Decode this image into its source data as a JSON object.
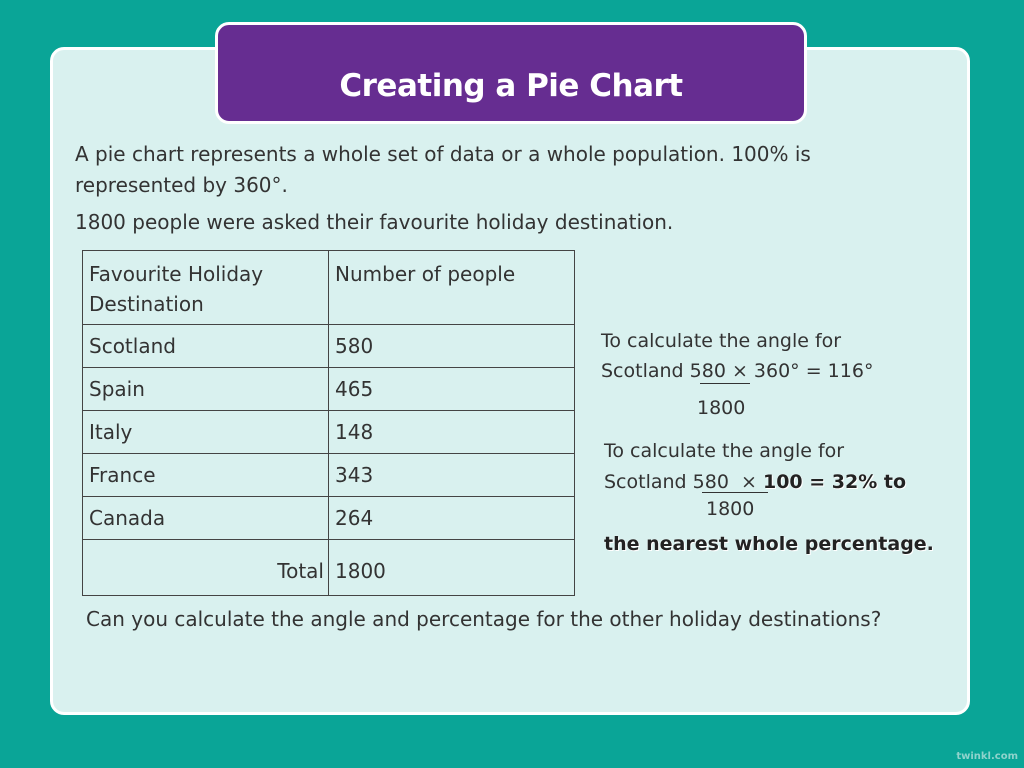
{
  "title": "Creating a Pie Chart",
  "intro_line1": "A pie chart represents a whole set of data or a whole population. 100% is",
  "intro_line2": "represented by 360°.",
  "survey": "1800 people were asked their favourite holiday destination.",
  "table": {
    "header_destination_1": "Favourite Holiday",
    "header_destination_2": "Destination",
    "header_people": "Number of people",
    "rows": [
      {
        "destination": "Scotland",
        "people": "580"
      },
      {
        "destination": "Spain",
        "people": "465"
      },
      {
        "destination": "Italy",
        "people": "148"
      },
      {
        "destination": "France",
        "people": "343"
      },
      {
        "destination": "Canada",
        "people": "264"
      }
    ],
    "total_label": "Total",
    "total_value": "1800"
  },
  "angle_calc": {
    "line1": "To calculate the angle for",
    "prefix": "Scotland ",
    "numerator": "580",
    "rest": " × 360° = 116°",
    "denominator": "1800"
  },
  "percent_calc": {
    "line1": "To calculate the angle for",
    "prefix": "Scotland ",
    "numerator": "580",
    "times": "  × ",
    "rest": "100 = 32% to",
    "denominator": "1800",
    "line3": "the nearest whole percentage."
  },
  "question": "Can you calculate the angle and percentage for the other holiday destinations?",
  "credit": "twinkl.com"
}
